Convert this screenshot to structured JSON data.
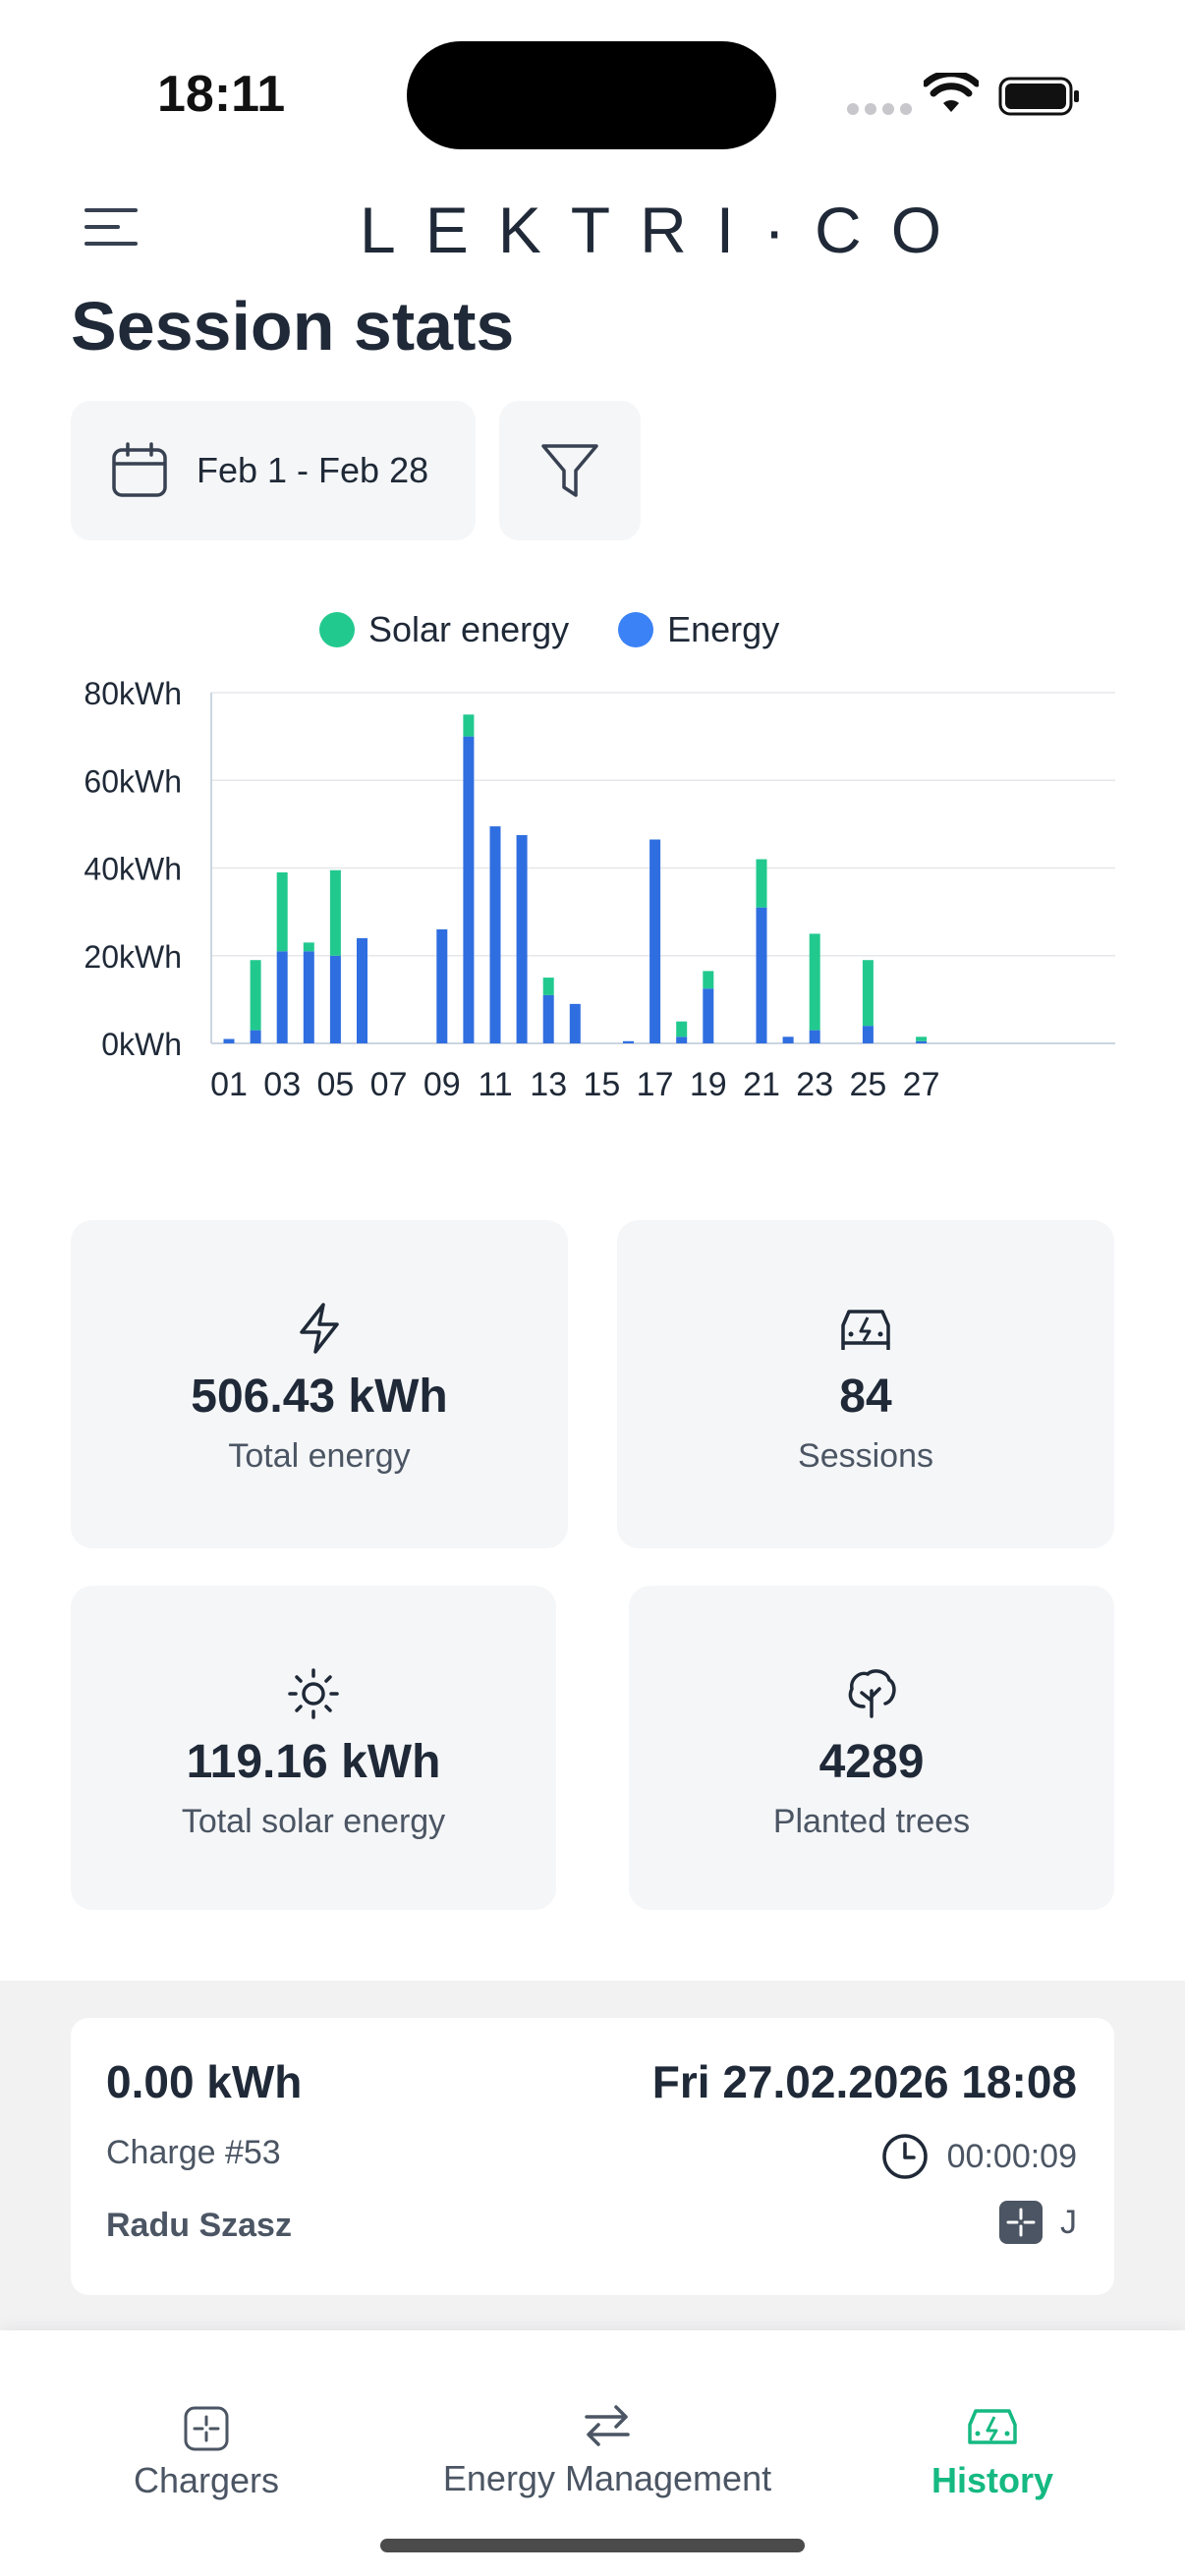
{
  "status_bar": {
    "time": "18:11"
  },
  "header": {
    "logo": "LEKTRI·CO",
    "menu_icon": "hamburger-menu-icon"
  },
  "page": {
    "title": "Session stats",
    "date_range": "Feb 1 - Feb 28",
    "date_icon": "calendar-icon",
    "filter_icon": "filter-funnel-icon"
  },
  "colors": {
    "solar": "#22c98f",
    "energy": "#2f6ee0",
    "accent": "#15b981"
  },
  "chart_data": {
    "type": "bar",
    "stacked": true,
    "legend": [
      "Solar energy",
      "Energy"
    ],
    "legend_position": "top-center",
    "y_unit": "kWh",
    "ylim": [
      0,
      80
    ],
    "y_ticks": [
      "0kWh",
      "20kWh",
      "40kWh",
      "60kWh",
      "80kWh"
    ],
    "x_tick_labels": [
      "01",
      "03",
      "05",
      "07",
      "09",
      "11",
      "13",
      "15",
      "17",
      "19",
      "21",
      "23",
      "25",
      "27"
    ],
    "categories": [
      "01",
      "02",
      "03",
      "04",
      "05",
      "06",
      "07",
      "08",
      "09",
      "10",
      "11",
      "12",
      "13",
      "14",
      "15",
      "16",
      "17",
      "18",
      "19",
      "20",
      "21",
      "22",
      "23",
      "24",
      "25",
      "26",
      "27",
      "28"
    ],
    "series": [
      {
        "name": "Energy",
        "values": [
          1,
          3,
          21,
          21,
          20,
          24,
          0,
          0,
          26,
          70,
          49.5,
          47.5,
          11,
          9,
          0,
          0.5,
          46.5,
          1.5,
          12.5,
          0,
          31,
          1.5,
          3,
          0,
          4,
          0,
          0.5,
          0
        ]
      },
      {
        "name": "Solar energy",
        "values": [
          0,
          16,
          18,
          2,
          19.5,
          0,
          0,
          0,
          0,
          5,
          0,
          0,
          4,
          0,
          0,
          0,
          0,
          3.5,
          4,
          0,
          11,
          0,
          22,
          0,
          15,
          0,
          1,
          0
        ]
      }
    ],
    "grid": true
  },
  "stats": [
    {
      "icon": "lightning-bolt-icon",
      "value": "506.43 kWh",
      "label": "Total energy"
    },
    {
      "icon": "car-charging-icon",
      "value": "84",
      "label": "Sessions"
    },
    {
      "icon": "sun-icon",
      "value": "119.16 kWh",
      "label": "Total solar energy"
    },
    {
      "icon": "tree-icon",
      "value": "4289",
      "label": "Planted trees"
    }
  ],
  "session": {
    "energy": "0.00 kWh",
    "datetime": "Fri 27.02.2026 18:08",
    "charge": "Charge #53",
    "duration": "00:00:09",
    "user": "Radu Szasz",
    "charger": "J"
  },
  "nav": [
    {
      "label": "Chargers",
      "icon": "charger-icon",
      "active": false
    },
    {
      "label": "Energy Management",
      "icon": "arrows-exchange-icon",
      "active": false
    },
    {
      "label": "History",
      "icon": "car-history-icon",
      "active": true
    }
  ]
}
